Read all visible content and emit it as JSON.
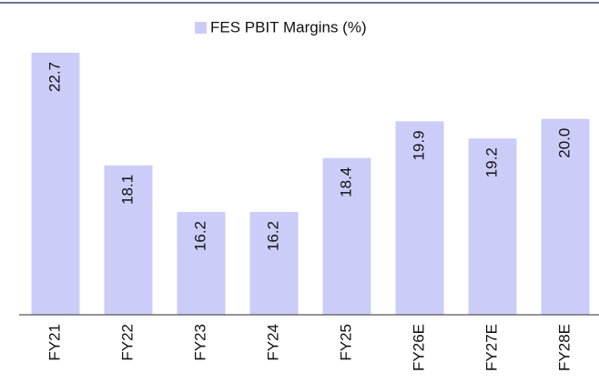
{
  "chart_data": {
    "type": "bar",
    "legend": "FES PBIT Margins (%)",
    "categories": [
      "FY21",
      "FY22",
      "FY23",
      "FY24",
      "FY25",
      "FY26E",
      "FY27E",
      "FY28E"
    ],
    "values": [
      22.7,
      18.1,
      16.2,
      16.2,
      18.4,
      19.9,
      19.2,
      20.0
    ],
    "value_labels": [
      "22.7",
      "18.1",
      "16.2",
      "16.2",
      "18.4",
      "19.9",
      "19.2",
      "20.0"
    ],
    "color": "#ccccf8",
    "ylim": [
      12,
      24
    ]
  }
}
